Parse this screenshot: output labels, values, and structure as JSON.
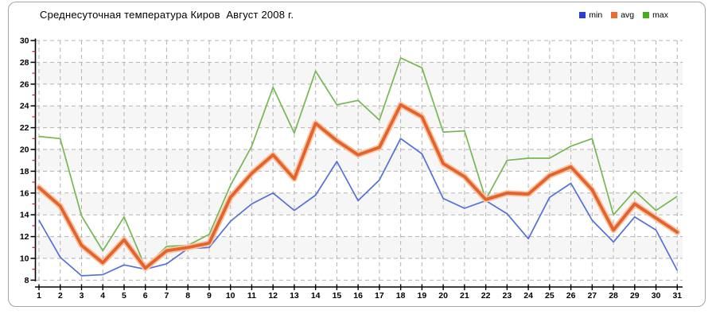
{
  "figure": {
    "title": "Среднесуточная температура Киров  Август 2008 г."
  },
  "legend": {
    "items": [
      {
        "label": "min",
        "color": "#2a3cd4"
      },
      {
        "label": "avg",
        "color": "#ed6c2f"
      },
      {
        "label": "max",
        "color": "#46ad1d"
      }
    ]
  },
  "chart_data": {
    "type": "line",
    "title": "Среднесуточная температура Киров  Август 2008 г.",
    "xlabel": "",
    "ylabel": "",
    "x": [
      1,
      2,
      3,
      4,
      5,
      6,
      7,
      8,
      9,
      10,
      11,
      12,
      13,
      14,
      15,
      16,
      17,
      18,
      19,
      20,
      21,
      22,
      23,
      24,
      25,
      26,
      27,
      28,
      29,
      30,
      31
    ],
    "series": [
      {
        "name": "min",
        "color": "#5271d8",
        "line_width": 1.7,
        "values": [
          13.5,
          10.1,
          8.4,
          8.5,
          9.4,
          9.0,
          9.5,
          10.9,
          11.0,
          13.4,
          15.0,
          16.0,
          14.4,
          15.8,
          18.9,
          15.3,
          17.2,
          21.0,
          19.6,
          15.5,
          14.6,
          15.3,
          14.1,
          11.8,
          15.6,
          16.9,
          13.5,
          11.5,
          13.8,
          12.6,
          8.9
        ]
      },
      {
        "name": "avg",
        "color": "#e2632b",
        "halo_color": "#f6c3a3",
        "line_width": 3.8,
        "values": [
          16.5,
          14.8,
          11.2,
          9.6,
          11.7,
          9.1,
          10.7,
          11.0,
          11.4,
          15.6,
          17.8,
          19.5,
          17.3,
          22.4,
          20.8,
          19.5,
          20.2,
          24.1,
          23.0,
          18.7,
          17.5,
          15.4,
          16.0,
          15.9,
          17.6,
          18.4,
          16.3,
          12.6,
          15.0,
          13.7,
          12.4
        ]
      },
      {
        "name": "max",
        "color": "#74b850",
        "line_width": 1.7,
        "values": [
          21.2,
          21.0,
          13.9,
          10.7,
          13.8,
          9.2,
          11.1,
          11.2,
          12.2,
          16.7,
          20.3,
          25.7,
          21.5,
          27.2,
          24.1,
          24.5,
          22.7,
          28.4,
          27.5,
          21.6,
          21.7,
          15.4,
          19.0,
          19.2,
          19.2,
          20.3,
          21.0,
          14.0,
          16.2,
          14.4,
          15.7
        ]
      }
    ],
    "ylim": [
      8,
      30
    ],
    "y_tick_step": 2,
    "y_minor_tick_step": 1,
    "y_ticks": [
      8,
      10,
      12,
      14,
      16,
      18,
      20,
      22,
      24,
      26,
      28,
      30
    ],
    "grid": "dashed",
    "gridline_color": "#b3b3b3",
    "band_colors": [
      "#ffffff",
      "#f6f6f6"
    ],
    "axis_color": "#000000",
    "minor_tick_color": "#cc2222",
    "legend_position": "top-right"
  }
}
